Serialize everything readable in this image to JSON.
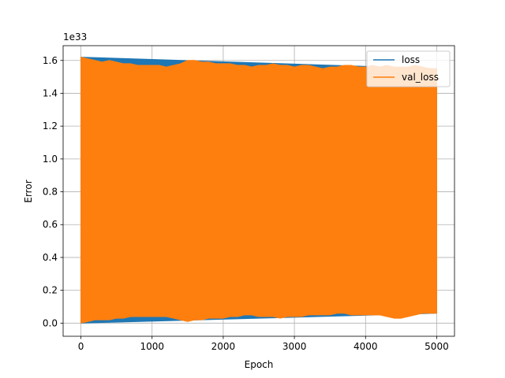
{
  "chart_data": {
    "type": "line",
    "title": "",
    "xlabel": "Epoch",
    "ylabel": "Error",
    "y_offset_text": "1e33",
    "xlim": [
      -250,
      5250
    ],
    "ylim": [
      -0.08,
      1.69
    ],
    "x_ticks": [
      0,
      1000,
      2000,
      3000,
      4000,
      5000
    ],
    "x_tick_labels": [
      "0",
      "1000",
      "2000",
      "3000",
      "4000",
      "5000"
    ],
    "y_ticks": [
      0.0,
      0.2,
      0.4,
      0.6,
      0.8,
      1.0,
      1.2,
      1.4,
      1.6
    ],
    "y_tick_labels": [
      "0.0",
      "0.2",
      "0.4",
      "0.6",
      "0.8",
      "1.0",
      "1.2",
      "1.4",
      "1.6"
    ],
    "grid": true,
    "legend_position": "top-right",
    "series": [
      {
        "name": "loss",
        "color": "#1f77b4",
        "note": "hidden beneath val_loss band",
        "x": [
          0,
          5000
        ],
        "y_upper": [
          1.62,
          1.55
        ],
        "y_lower": [
          0.0,
          0.06
        ]
      },
      {
        "name": "val_loss",
        "color": "#ff7f0e",
        "x": [
          0,
          100,
          200,
          300,
          400,
          500,
          600,
          700,
          800,
          900,
          1000,
          1100,
          1200,
          1300,
          1400,
          1500,
          1600,
          1700,
          1800,
          1900,
          2000,
          2100,
          2200,
          2300,
          2400,
          2500,
          2600,
          2700,
          2800,
          2900,
          3000,
          3100,
          3200,
          3300,
          3400,
          3500,
          3600,
          3700,
          3800,
          3900,
          4000,
          4100,
          4200,
          4300,
          4400,
          4500,
          4600,
          4700,
          4800,
          4900,
          5000
        ],
        "y_upper": [
          1.62,
          1.61,
          1.6,
          1.59,
          1.6,
          1.59,
          1.58,
          1.58,
          1.57,
          1.57,
          1.57,
          1.57,
          1.56,
          1.57,
          1.58,
          1.6,
          1.6,
          1.59,
          1.59,
          1.58,
          1.58,
          1.58,
          1.57,
          1.57,
          1.56,
          1.57,
          1.57,
          1.58,
          1.57,
          1.57,
          1.56,
          1.57,
          1.57,
          1.56,
          1.55,
          1.56,
          1.56,
          1.57,
          1.57,
          1.56,
          1.56,
          1.57,
          1.56,
          1.57,
          1.56,
          1.56,
          1.56,
          1.57,
          1.56,
          1.55,
          1.55
        ],
        "y_lower": [
          0.0,
          0.01,
          0.02,
          0.02,
          0.02,
          0.03,
          0.03,
          0.04,
          0.04,
          0.04,
          0.04,
          0.04,
          0.04,
          0.03,
          0.02,
          0.01,
          0.02,
          0.02,
          0.03,
          0.03,
          0.03,
          0.04,
          0.04,
          0.05,
          0.05,
          0.04,
          0.04,
          0.04,
          0.03,
          0.04,
          0.04,
          0.04,
          0.05,
          0.05,
          0.05,
          0.05,
          0.06,
          0.06,
          0.05,
          0.05,
          0.05,
          0.05,
          0.05,
          0.04,
          0.03,
          0.03,
          0.04,
          0.05,
          0.06,
          0.06,
          0.06
        ]
      }
    ]
  }
}
